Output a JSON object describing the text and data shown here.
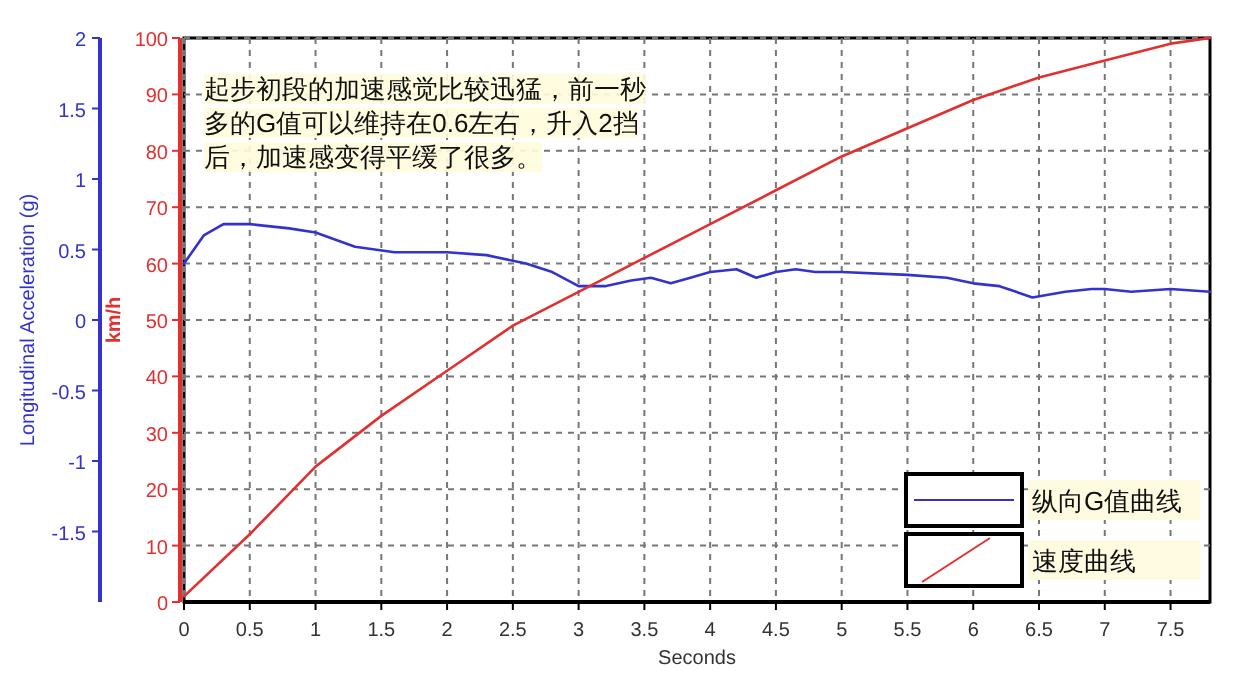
{
  "chart_data": {
    "type": "line",
    "xlabel": "Seconds",
    "ylabel": "Longitudinal Acceleration (g)",
    "y2label": "km/h",
    "xlim": [
      0,
      7.8
    ],
    "xticks": [
      0,
      0.5,
      1,
      1.5,
      2,
      2.5,
      3,
      3.5,
      4,
      4.5,
      5,
      5.5,
      6,
      6.5,
      7,
      7.5
    ],
    "ylim": [
      -2,
      2
    ],
    "yticks": [
      -1.5,
      -1,
      -0.5,
      0,
      0.5,
      1,
      1.5,
      2
    ],
    "y2lim": [
      0,
      100
    ],
    "y2ticks": [
      0,
      10,
      20,
      30,
      40,
      50,
      60,
      70,
      80,
      90,
      100
    ],
    "grid": true,
    "legend": "bottom right",
    "line_style": "solid",
    "marker": "none",
    "annotations": [
      "起步初段的加速感觉比较迅猛，前一秒多的G值可以维持在0.6左右，升入2挡后，加速感变得平缓了很多。"
    ],
    "series": [
      {
        "name": "纵向G值曲线",
        "color": "#3333cc",
        "x": [
          0,
          0.15,
          0.3,
          0.5,
          0.8,
          1,
          1.3,
          1.6,
          2,
          2.3,
          2.6,
          2.8,
          3,
          3.2,
          3.4,
          3.55,
          3.7,
          3.85,
          4,
          4.2,
          4.35,
          4.5,
          4.65,
          4.8,
          5,
          5.5,
          5.8,
          6,
          6.2,
          6.45,
          6.7,
          6.9,
          7,
          7.2,
          7.5,
          7.8
        ],
        "values": [
          0.4,
          0.6,
          0.68,
          0.68,
          0.65,
          0.62,
          0.52,
          0.48,
          0.48,
          0.46,
          0.4,
          0.34,
          0.24,
          0.24,
          0.28,
          0.3,
          0.26,
          0.3,
          0.34,
          0.36,
          0.3,
          0.34,
          0.36,
          0.34,
          0.34,
          0.32,
          0.3,
          0.26,
          0.24,
          0.16,
          0.2,
          0.22,
          0.22,
          0.2,
          0.22,
          0.2
        ]
      },
      {
        "name": "速度曲线",
        "color": "#e03030",
        "axis": "y2",
        "x": [
          0,
          0.5,
          1,
          1.5,
          2,
          2.5,
          3,
          3.5,
          4,
          4.5,
          5,
          5.5,
          6,
          6.5,
          7,
          7.5,
          7.8
        ],
        "values": [
          1,
          12,
          24,
          33,
          41,
          49,
          55,
          61,
          67,
          73,
          79,
          84,
          89,
          93,
          96,
          99,
          100
        ]
      }
    ]
  }
}
